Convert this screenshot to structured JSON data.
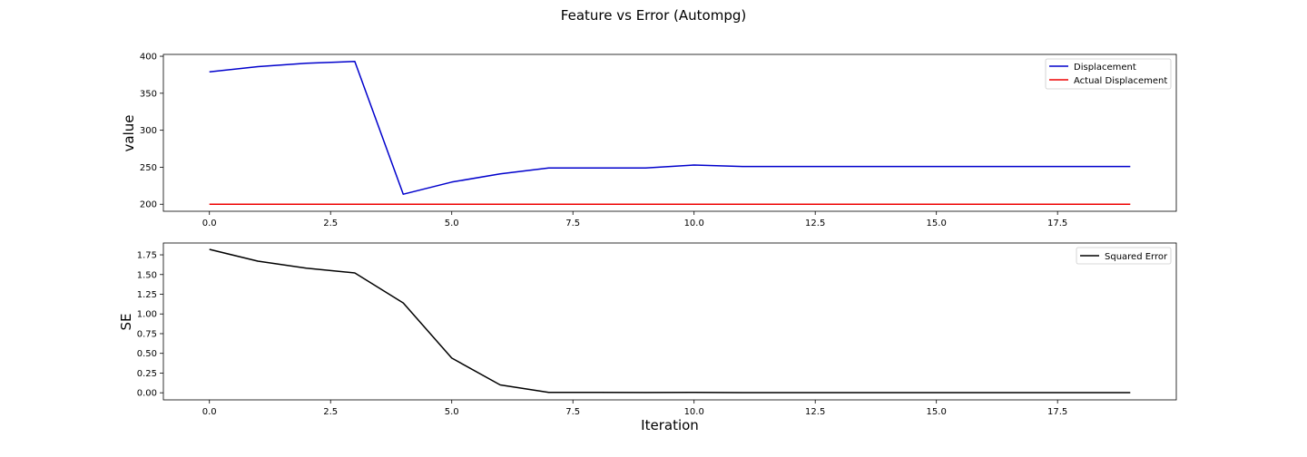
{
  "chart_data": [
    {
      "type": "line",
      "suptitle": "Feature vs Error (Autompg)",
      "xlabel": "",
      "ylabel": "value",
      "xlim": [
        -0.95,
        19.95
      ],
      "ylim": [
        190.5,
        402.5
      ],
      "xticks": [
        0.0,
        2.5,
        5.0,
        7.5,
        10.0,
        12.5,
        15.0,
        17.5
      ],
      "xtick_labels": [
        "0.0",
        "2.5",
        "5.0",
        "7.5",
        "10.0",
        "12.5",
        "15.0",
        "17.5"
      ],
      "yticks": [
        200,
        250,
        300,
        350,
        400
      ],
      "ytick_labels": [
        "200",
        "250",
        "300",
        "350",
        "400"
      ],
      "grid": false,
      "legend_position": "top-right",
      "x": [
        0,
        1,
        2,
        3,
        4,
        5,
        6,
        7,
        8,
        9,
        10,
        11,
        12,
        13,
        14,
        15,
        16,
        17,
        18,
        19
      ],
      "series": [
        {
          "name": "Displacement",
          "color": "#0000cc",
          "values": [
            379,
            386,
            390.5,
            393,
            213.5,
            230,
            241,
            249,
            249,
            249,
            253,
            251,
            251,
            251,
            251,
            251,
            251,
            251,
            251,
            251
          ]
        },
        {
          "name": "Actual Displacement",
          "color": "#ee0000",
          "values": [
            200,
            200,
            200,
            200,
            200,
            200,
            200,
            200,
            200,
            200,
            200,
            200,
            200,
            200,
            200,
            200,
            200,
            200,
            200,
            200
          ]
        }
      ]
    },
    {
      "type": "line",
      "xlabel": "Iteration",
      "ylabel": "SE",
      "xlim": [
        -0.95,
        19.95
      ],
      "ylim": [
        -0.09,
        1.9
      ],
      "xticks": [
        0.0,
        2.5,
        5.0,
        7.5,
        10.0,
        12.5,
        15.0,
        17.5
      ],
      "xtick_labels": [
        "0.0",
        "2.5",
        "5.0",
        "7.5",
        "10.0",
        "12.5",
        "15.0",
        "17.5"
      ],
      "yticks": [
        0.0,
        0.25,
        0.5,
        0.75,
        1.0,
        1.25,
        1.5,
        1.75
      ],
      "ytick_labels": [
        "0.00",
        "0.25",
        "0.50",
        "0.75",
        "1.00",
        "1.25",
        "1.50",
        "1.75"
      ],
      "grid": false,
      "legend_position": "top-right",
      "x": [
        0,
        1,
        2,
        3,
        4,
        5,
        6,
        7,
        8,
        9,
        10,
        11,
        12,
        13,
        14,
        15,
        16,
        17,
        18,
        19
      ],
      "series": [
        {
          "name": "Squared Error",
          "color": "#000000",
          "values": [
            1.82,
            1.67,
            1.58,
            1.52,
            1.14,
            0.44,
            0.1,
            0.005,
            0.004,
            0.003,
            0.005,
            0.002,
            0.002,
            0.002,
            0.002,
            0.002,
            0.002,
            0.002,
            0.002,
            0.002
          ]
        }
      ]
    }
  ]
}
